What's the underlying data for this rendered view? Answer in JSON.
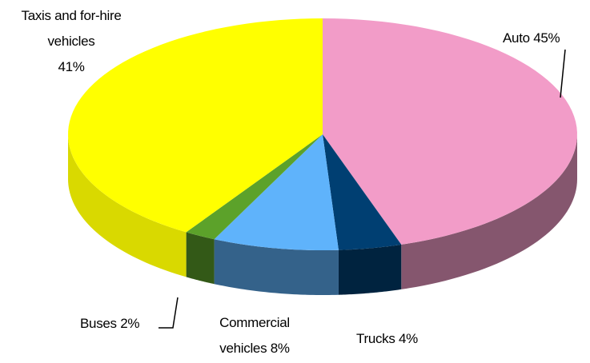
{
  "chart_data": {
    "type": "pie",
    "categories": [
      "Auto",
      "Trucks",
      "Commercial vehicles",
      "Buses",
      "Taxis and for-hire vehicles"
    ],
    "values": [
      45,
      4,
      8,
      2,
      41
    ],
    "value_labels": [
      "45%",
      "4%",
      "8%",
      "2%",
      "41%"
    ],
    "colors": [
      "#f29cc8",
      "#003f72",
      "#5fb3fb",
      "#5ca22a",
      "#ffff00"
    ]
  }
}
